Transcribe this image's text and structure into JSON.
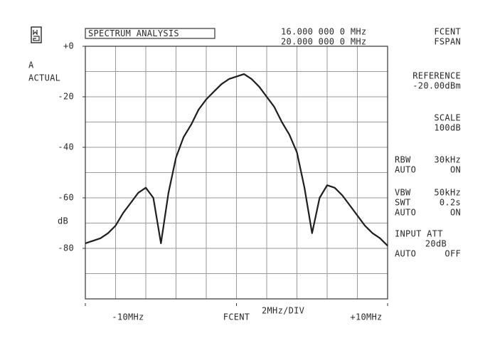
{
  "chart_data": {
    "type": "line",
    "title": "SPECTRUM ANALYSIS",
    "x": [
      -10,
      -9.5,
      -9,
      -8.5,
      -8,
      -7.5,
      -7,
      -6.5,
      -6,
      -5.5,
      -5,
      -4.5,
      -4,
      -3.5,
      -3,
      -2.5,
      -2,
      -1.5,
      -1,
      -0.5,
      0,
      0.5,
      1,
      1.5,
      2,
      2.5,
      3,
      3.5,
      4,
      4.5,
      5,
      5.5,
      6,
      6.5,
      7,
      7.5,
      8,
      8.5,
      9,
      9.5,
      10
    ],
    "values": [
      -78,
      -77,
      -76,
      -74,
      -71,
      -66,
      -62,
      -58,
      -56,
      -60,
      -78,
      -58,
      -44,
      -36,
      -31,
      -25,
      -21,
      -18,
      -15,
      -13,
      -12,
      -11,
      -13,
      -16,
      -20,
      -24,
      -30,
      -35,
      -42,
      -56,
      -74,
      -60,
      -55,
      -56,
      -59,
      -63,
      -67,
      -71,
      -74,
      -76,
      -79
    ],
    "color": "#1e1e1e",
    "xlim": [
      -10,
      10
    ],
    "ylim": [
      -100,
      0
    ],
    "xticks": [
      {
        "value": -10,
        "label": "-10MHz"
      },
      {
        "value": 0,
        "label": "FCENT"
      },
      {
        "value": 10,
        "label": "+10MHz"
      }
    ],
    "yticks": [
      {
        "value": 0,
        "label": "+0"
      },
      -20,
      -40,
      -60,
      -80
    ],
    "grid": true,
    "annotations": [
      "16.000 000 0 MHz",
      "FCENT",
      "20.000 000 0 MHz",
      "FSPAN",
      "A",
      "ACTUAL",
      "dB",
      "REFERENCE",
      "-20.00dBm",
      "SCALE",
      "100dB",
      "RBW",
      "30kHz",
      "AUTO",
      "ON",
      "VBW",
      "50kHz",
      "SWT",
      "0.2s",
      "AUTO",
      "ON",
      "INPUT ATT",
      "20dB",
      "AUTO",
      "OFF",
      "2MHz/DIV"
    ]
  }
}
